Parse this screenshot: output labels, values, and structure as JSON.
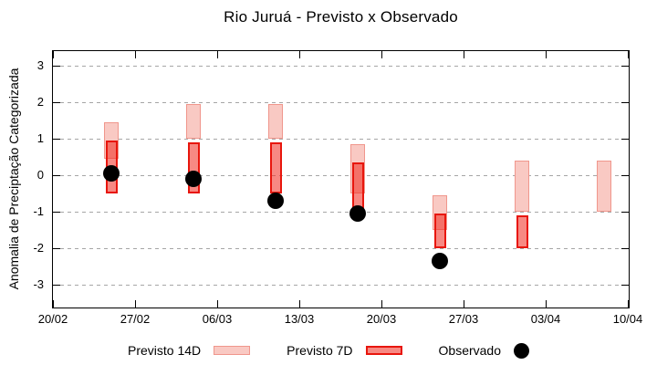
{
  "title": "Rio Juruá - Previsto x Observado",
  "colors": {
    "background": "#ffffff",
    "axis": "#000000",
    "text": "#000000",
    "grid": "#a6a6a6",
    "bar_14d_fill": "#f9c9c3",
    "bar_14d_border": "#f0968c",
    "bar_7d_fill": "rgba(240,40,30,0.55)",
    "bar_7d_border": "#e8160d",
    "observed": "#000000"
  },
  "axes": {
    "ylabel": "Anomalia de Preciptação Categorizada",
    "x_tick_labels": [
      "20/02",
      "27/02",
      "06/03",
      "13/03",
      "20/03",
      "27/03",
      "03/04",
      "10/04"
    ],
    "y_tick_labels": [
      "3",
      "2",
      "1",
      "0",
      "-1",
      "-2",
      "-3"
    ]
  },
  "legend": {
    "items": [
      {
        "key": "previsto-14d",
        "label": "Previsto 14D",
        "swatch": "box",
        "fill": "#f9c9c3",
        "border": "#f0968c"
      },
      {
        "key": "previsto-7d",
        "label": "Previsto 7D",
        "swatch": "box",
        "fill": "rgba(240,40,30,0.55)",
        "border": "#e8160d"
      },
      {
        "key": "observado",
        "label": "Observado",
        "swatch": "dot",
        "fill": "#000000"
      }
    ]
  },
  "chart_data": {
    "type": "bar",
    "variant": "floating-range-bars-with-observed-scatter",
    "title": "Rio Juruá - Previsto x Observado",
    "xlabel": "",
    "ylabel": "Anomalia de Preciptação Categorizada",
    "ylim": [
      -3.5,
      3.5
    ],
    "y_ticks": [
      3,
      2,
      1,
      0,
      -1,
      -2,
      -3
    ],
    "grid": "horizontal-dashed",
    "legend_position": "bottom-center",
    "x_axis": {
      "tick_labels": [
        "20/02",
        "27/02",
        "06/03",
        "13/03",
        "20/03",
        "27/03",
        "03/04",
        "10/04"
      ],
      "tick_interval_days": 7,
      "span_days": 49
    },
    "series": [
      {
        "name": "Previsto 14D",
        "type": "range_bar",
        "bars": [
          {
            "date": "25/02",
            "day_offset": 5,
            "low": 0.45,
            "high": 1.45
          },
          {
            "date": "04/03",
            "day_offset": 12,
            "low": 1.0,
            "high": 1.95
          },
          {
            "date": "11/03",
            "day_offset": 19,
            "low": 1.0,
            "high": 1.95
          },
          {
            "date": "18/03",
            "day_offset": 26,
            "low": -0.5,
            "high": 0.85
          },
          {
            "date": "25/03",
            "day_offset": 33,
            "low": -1.5,
            "high": -0.55
          },
          {
            "date": "01/04",
            "day_offset": 40,
            "low": -1.0,
            "high": 0.4
          },
          {
            "date": "08/04",
            "day_offset": 47,
            "low": -1.0,
            "high": 0.4
          }
        ]
      },
      {
        "name": "Previsto 7D",
        "type": "range_bar",
        "bars": [
          {
            "date": "25/02",
            "day_offset": 5,
            "low": -0.5,
            "high": 0.95
          },
          {
            "date": "04/03",
            "day_offset": 12,
            "low": -0.5,
            "high": 0.9
          },
          {
            "date": "11/03",
            "day_offset": 19,
            "low": -0.5,
            "high": 0.9
          },
          {
            "date": "18/03",
            "day_offset": 26,
            "low": -1.0,
            "high": 0.35
          },
          {
            "date": "25/03",
            "day_offset": 33,
            "low": -2.0,
            "high": -1.05
          },
          {
            "date": "01/04",
            "day_offset": 40,
            "low": -2.0,
            "high": -1.1
          }
        ]
      },
      {
        "name": "Observado",
        "type": "scatter",
        "points": [
          {
            "date": "25/02",
            "day_offset": 5,
            "value": 0.05
          },
          {
            "date": "04/03",
            "day_offset": 12,
            "value": -0.1
          },
          {
            "date": "11/03",
            "day_offset": 19,
            "value": -0.7
          },
          {
            "date": "18/03",
            "day_offset": 26,
            "value": -1.05
          },
          {
            "date": "25/03",
            "day_offset": 33,
            "value": -2.35
          }
        ]
      }
    ]
  }
}
